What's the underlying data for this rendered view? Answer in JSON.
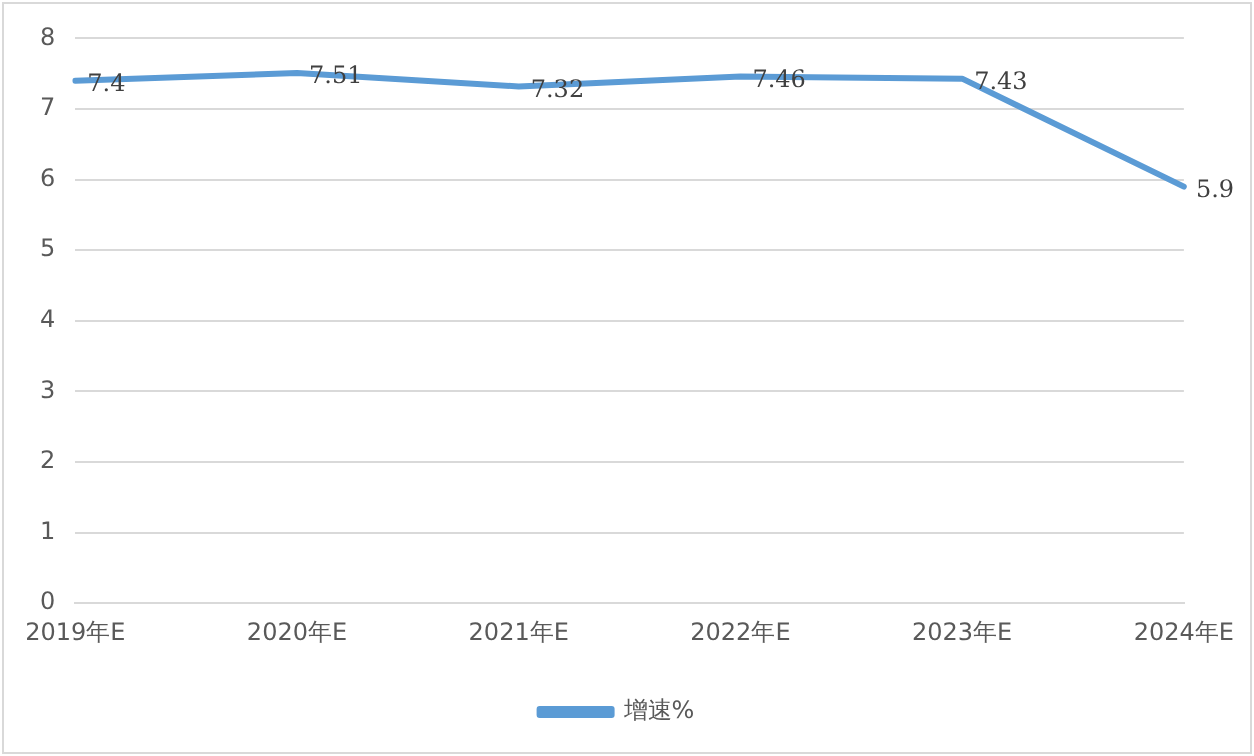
{
  "chart_data": {
    "type": "line",
    "categories": [
      "2019年E",
      "2020年E",
      "2021年E",
      "2022年E",
      "2023年E",
      "2024年E"
    ],
    "series": [
      {
        "name": "增速%",
        "color": "#5b9bd5",
        "values": [
          7.4,
          7.51,
          7.32,
          7.46,
          7.43,
          5.9
        ]
      }
    ],
    "ylim": [
      0,
      8
    ],
    "yticks": [
      0,
      1,
      2,
      3,
      4,
      5,
      6,
      7,
      8
    ],
    "grid": "y",
    "legend": "bottom",
    "marker": "none",
    "line_style": "solid",
    "data_labels": true
  }
}
